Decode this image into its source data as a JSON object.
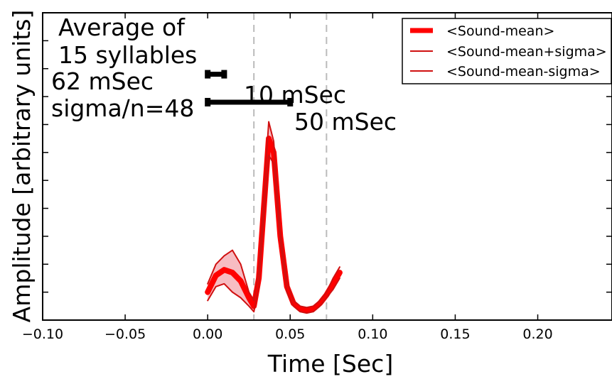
{
  "chart_data": {
    "type": "line",
    "xlabel": "Time [Sec]",
    "ylabel": "Amplitude [arbitrary units]",
    "xlim": [
      -0.1,
      0.245
    ],
    "ylim": [
      -0.1,
      1.0
    ],
    "x_ticks": [
      "−0.10",
      "−0.05",
      "0.00",
      "0.05",
      "0.10",
      "0.15",
      "0.20"
    ],
    "x_tick_values": [
      -0.1,
      -0.05,
      0.0,
      0.05,
      0.1,
      0.15,
      0.2
    ],
    "y_ticks_unlabeled": [
      0.0,
      0.1,
      0.2,
      0.3,
      0.4,
      0.5,
      0.6,
      0.7,
      0.8,
      0.9,
      1.0
    ],
    "vlines": [
      0.028,
      0.072
    ],
    "annotations": {
      "line1": "Average of",
      "line2": "15 syllables",
      "line3": "62 mSec",
      "line4": "sigma/n=48",
      "bar10_label": "10 mSec",
      "bar50_label": "50 mSec"
    },
    "scale_bars": [
      {
        "label": "10 mSec",
        "x0": 0.0,
        "x1": 0.01,
        "y": 0.78
      },
      {
        "label": "50 mSec",
        "x0": 0.0,
        "x1": 0.05,
        "y": 0.68
      }
    ],
    "legend_position": "top-right",
    "series": [
      {
        "name": "<Sound-mean>",
        "color": "#ff0000",
        "x": [
          0.0,
          0.005,
          0.01,
          0.015,
          0.02,
          0.025,
          0.028,
          0.031,
          0.034,
          0.037,
          0.04,
          0.044,
          0.048,
          0.052,
          0.056,
          0.06,
          0.064,
          0.068,
          0.072,
          0.076,
          0.08
        ],
        "y": [
          0.0,
          0.06,
          0.08,
          0.07,
          0.04,
          -0.02,
          -0.05,
          0.05,
          0.3,
          0.55,
          0.5,
          0.2,
          0.02,
          -0.04,
          -0.06,
          -0.065,
          -0.06,
          -0.04,
          -0.01,
          0.03,
          0.07
        ]
      },
      {
        "name": "<Sound-mean+sigma>",
        "color": "#d01010",
        "x": [
          0.0,
          0.005,
          0.01,
          0.015,
          0.02,
          0.025,
          0.028,
          0.031,
          0.034,
          0.037,
          0.04,
          0.044,
          0.048,
          0.052,
          0.056,
          0.06,
          0.064,
          0.068,
          0.072,
          0.076,
          0.08
        ],
        "y": [
          0.03,
          0.1,
          0.13,
          0.15,
          0.1,
          0.0,
          -0.03,
          0.08,
          0.34,
          0.61,
          0.54,
          0.22,
          0.04,
          -0.03,
          -0.05,
          -0.055,
          -0.05,
          -0.03,
          0.0,
          0.05,
          0.09
        ]
      },
      {
        "name": "<Sound-mean-sigma>",
        "color": "#d01010",
        "x": [
          0.0,
          0.005,
          0.01,
          0.015,
          0.02,
          0.025,
          0.028,
          0.031,
          0.034,
          0.037,
          0.04,
          0.044,
          0.048,
          0.052,
          0.056,
          0.06,
          0.064,
          0.068,
          0.072,
          0.076,
          0.08
        ],
        "y": [
          -0.03,
          0.02,
          0.03,
          0.0,
          -0.02,
          -0.05,
          -0.07,
          0.02,
          0.26,
          0.49,
          0.46,
          0.18,
          0.0,
          -0.05,
          -0.07,
          -0.075,
          -0.07,
          -0.05,
          -0.02,
          0.01,
          0.05
        ]
      }
    ]
  }
}
